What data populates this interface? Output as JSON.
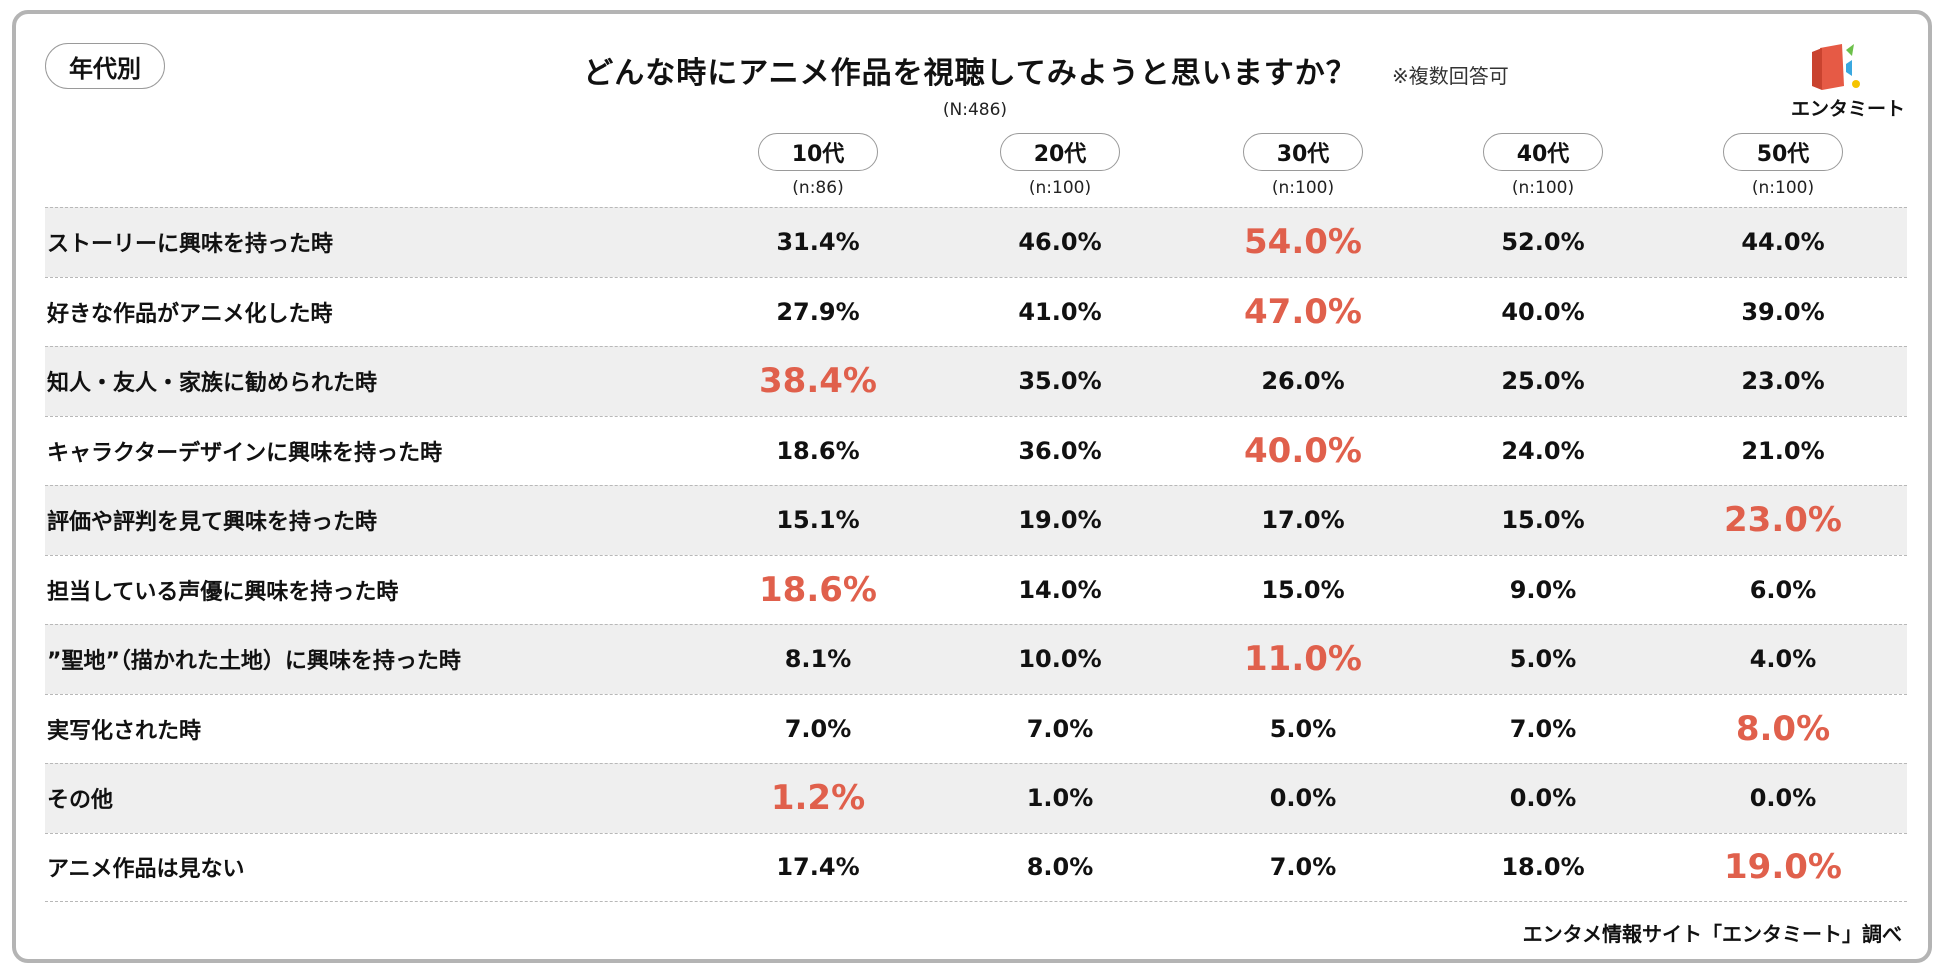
{
  "tag": "年代別",
  "title": "どんな時にアニメ作品を視聴してみようと思いますか？",
  "note": "※複数回答可",
  "total_n": "(N:486)",
  "logo_text": "エンタミート",
  "footer": "エンタメ情報サイト「エンタミート」調べ",
  "colors": {
    "highlight": "#e0604c",
    "shade": "#efefef",
    "logo_red": "#e65a45",
    "logo_yellow": "#f5c400",
    "logo_green": "#6cc04a",
    "logo_blue": "#3aa8e0"
  },
  "chart_data": {
    "type": "table",
    "title": "どんな時にアニメ作品を視聴してみようと思いますか？",
    "columns": [
      {
        "label": "10代",
        "n": "(n:86)"
      },
      {
        "label": "20代",
        "n": "(n:100)"
      },
      {
        "label": "30代",
        "n": "(n:100)"
      },
      {
        "label": "40代",
        "n": "(n:100)"
      },
      {
        "label": "50代",
        "n": "(n:100)"
      }
    ],
    "rows": [
      {
        "label": "ストーリーに興味を持った時",
        "values": [
          "31.4%",
          "46.0%",
          "54.0%",
          "52.0%",
          "44.0%"
        ],
        "highlight": 2
      },
      {
        "label": "好きな作品がアニメ化した時",
        "values": [
          "27.9%",
          "41.0%",
          "47.0%",
          "40.0%",
          "39.0%"
        ],
        "highlight": 2
      },
      {
        "label": "知人・友人・家族に勧められた時",
        "values": [
          "38.4%",
          "35.0%",
          "26.0%",
          "25.0%",
          "23.0%"
        ],
        "highlight": 0
      },
      {
        "label": "キャラクターデザインに興味を持った時",
        "values": [
          "18.6%",
          "36.0%",
          "40.0%",
          "24.0%",
          "21.0%"
        ],
        "highlight": 2
      },
      {
        "label": "評価や評判を見て興味を持った時",
        "values": [
          "15.1%",
          "19.0%",
          "17.0%",
          "15.0%",
          "23.0%"
        ],
        "highlight": 4
      },
      {
        "label": "担当している声優に興味を持った時",
        "values": [
          "18.6%",
          "14.0%",
          "15.0%",
          "9.0%",
          "6.0%"
        ],
        "highlight": 0
      },
      {
        "label": "”聖地”（描かれた土地）に興味を持った時",
        "values": [
          "8.1%",
          "10.0%",
          "11.0%",
          "5.0%",
          "4.0%"
        ],
        "highlight": 2
      },
      {
        "label": "実写化された時",
        "values": [
          "7.0%",
          "7.0%",
          "5.0%",
          "7.0%",
          "8.0%"
        ],
        "highlight": 4
      },
      {
        "label": "その他",
        "values": [
          "1.2%",
          "1.0%",
          "0.0%",
          "0.0%",
          "0.0%"
        ],
        "highlight": 0
      },
      {
        "label": "アニメ作品は見ない",
        "values": [
          "17.4%",
          "8.0%",
          "7.0%",
          "18.0%",
          "19.0%"
        ],
        "highlight": 4
      }
    ]
  }
}
